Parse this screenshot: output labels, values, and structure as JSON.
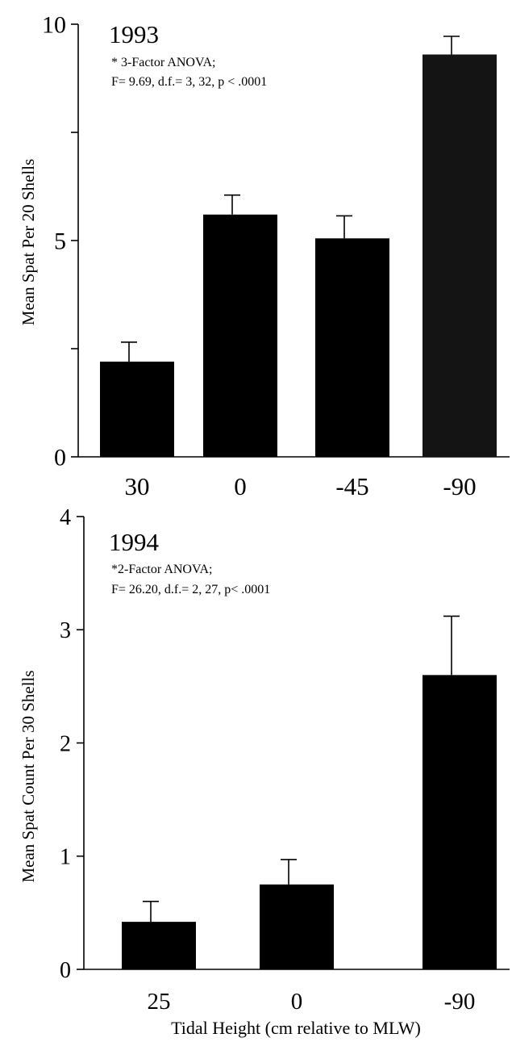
{
  "chart_data": [
    {
      "type": "bar",
      "title": "1993",
      "annotation_lines": [
        "* 3-Factor ANOVA;",
        "F= 9.69, d.f.= 3, 32, p < .0001"
      ],
      "ylabel": "Mean Spat Per 20 Shells",
      "xlabel": "",
      "categories": [
        "30",
        "0",
        "-45",
        "-90"
      ],
      "values": [
        2.2,
        5.6,
        5.05,
        9.3
      ],
      "errors": [
        0.45,
        0.45,
        0.52,
        0.42
      ],
      "ylim": [
        0,
        10
      ],
      "yticks_major": [
        0,
        5,
        10
      ],
      "yticks_minor": [
        2.5,
        7.5
      ],
      "grid": false,
      "colors": {
        "bars": "#000000",
        "last_bar": "#141414"
      }
    },
    {
      "type": "bar",
      "title": "1994",
      "annotation_lines": [
        "*2-Factor ANOVA;",
        "F= 26.20, d.f.= 2, 27, p< .0001"
      ],
      "ylabel": "Mean Spat Count Per 30 Shells",
      "xlabel": "Tidal Height (cm relative to MLW)",
      "categories": [
        "25",
        "0",
        "-90"
      ],
      "values": [
        0.42,
        0.75,
        2.6
      ],
      "errors": [
        0.18,
        0.22,
        0.52
      ],
      "ylim": [
        0,
        4
      ],
      "yticks_major": [
        0,
        1,
        2,
        3,
        4
      ],
      "grid": false,
      "colors": {
        "bars": "#000000"
      }
    }
  ]
}
